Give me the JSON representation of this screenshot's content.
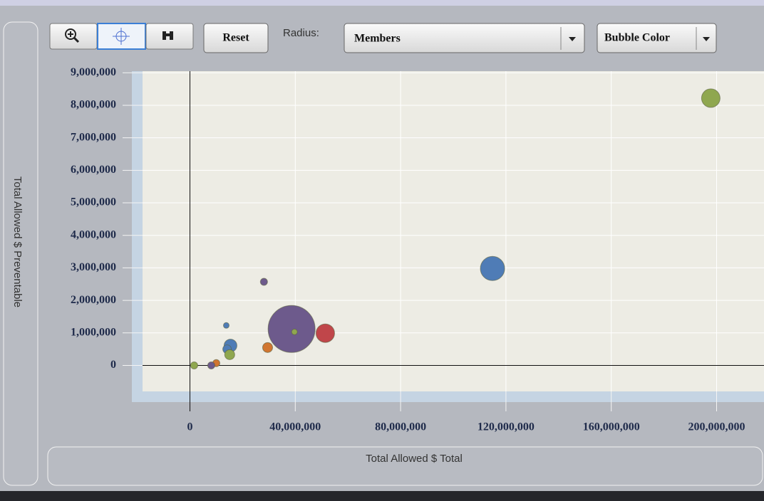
{
  "toolbar": {
    "reset": "Reset",
    "radius_label": "Radius:",
    "radius_value": "Members",
    "color_button": "Bubble Color"
  },
  "chart_data": {
    "type": "bubble",
    "xlabel": "Total Allowed $ Total",
    "ylabel": "Total Allowed $ Preventable",
    "x": [
      197800000,
      114900000,
      38600000,
      39700000,
      51400000,
      28100000,
      13800000,
      15400000,
      14100000,
      15100000,
      29500000,
      10000000,
      8100000,
      1600000
    ],
    "values": [
      8220000,
      2980000,
      1120000,
      1030000,
      990000,
      2570000,
      1230000,
      610000,
      500000,
      330000,
      550000,
      70000,
      0,
      0
    ],
    "sizes": [
      169,
      289,
      1089,
      16,
      169,
      25,
      16,
      81,
      36,
      49,
      49,
      25,
      25,
      25
    ],
    "colors": [
      "#8fa74f",
      "#4f7cb6",
      "#6d5a8c",
      "#8fa74f",
      "#c0464a",
      "#6d5a8c",
      "#4f7cb6",
      "#4f7cb6",
      "#4f7cb6",
      "#8fa74f",
      "#d17630",
      "#d17630",
      "#6d5a8c",
      "#8fa74f"
    ],
    "xlim": [
      -18000000,
      218000000
    ],
    "ylim": [
      -800000,
      9050000
    ],
    "xticks": [
      0,
      {
        "value": 40000000,
        "label": "40,000,000"
      },
      {
        "value": 80000000,
        "label": "80,000,000"
      },
      {
        "value": 120000000,
        "label": "120,000,000"
      },
      {
        "value": 160000000,
        "label": "160,000,000"
      },
      {
        "value": 200000000,
        "label": "200,000,000"
      }
    ],
    "yticks": [
      0,
      {
        "value": 1000000,
        "label": "1,000,000"
      },
      {
        "value": 2000000,
        "label": "2,000,000"
      },
      {
        "value": 3000000,
        "label": "3,000,000"
      },
      {
        "value": 4000000,
        "label": "4,000,000"
      },
      {
        "value": 5000000,
        "label": "5,000,000"
      },
      {
        "value": 6000000,
        "label": "6,000,000"
      },
      {
        "value": 7000000,
        "label": "7,000,000"
      },
      {
        "value": 8000000,
        "label": "8,000,000"
      },
      {
        "value": 9000000,
        "label": "9,000,000"
      }
    ],
    "grid": true
  }
}
